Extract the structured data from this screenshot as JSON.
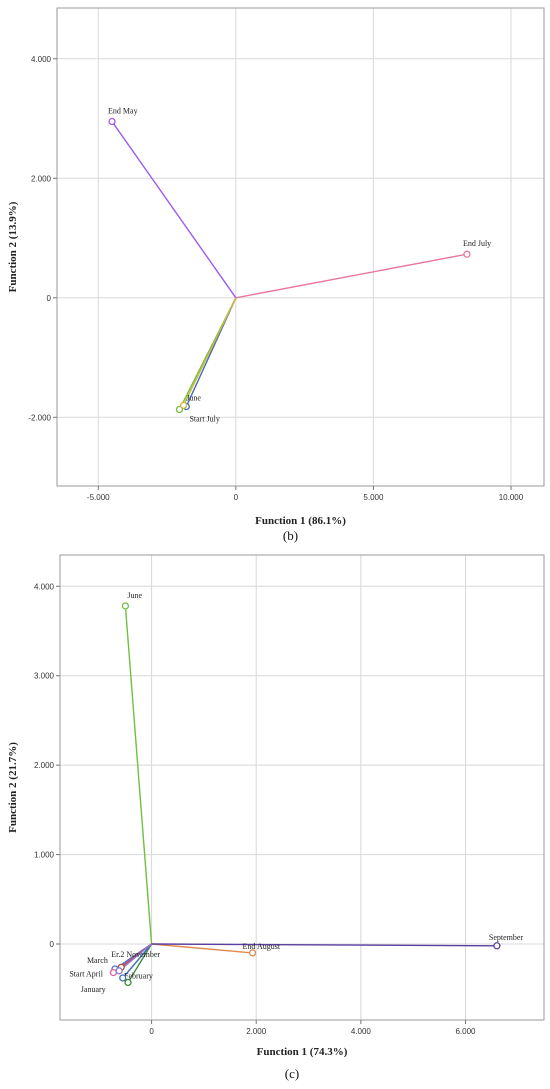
{
  "chart_data": [
    {
      "type": "scatter",
      "caption": "(b)",
      "xlabel": "Function 1 (86.1%)",
      "ylabel": "Function 2 (13.9%)",
      "xlim": [
        -6.5,
        11.2
      ],
      "ylim": [
        -3.15,
        4.85
      ],
      "xticks": [
        -5,
        0,
        5,
        10
      ],
      "xtick_labels": [
        "-5.000",
        "0",
        "5.000",
        "10.000"
      ],
      "yticks": [
        -2,
        0,
        2,
        4
      ],
      "ytick_labels": [
        "-2.000",
        "0",
        "2.000",
        "4.000"
      ],
      "grid": true,
      "points": [
        {
          "label": "End May",
          "x": -4.5,
          "y": 2.95,
          "color": "#9b5cf0"
        },
        {
          "label": "End July",
          "x": 8.4,
          "y": 0.73,
          "color": "#e9779f"
        },
        {
          "label": "June",
          "x": -1.8,
          "y": -1.82,
          "color": "#3d6fb6"
        },
        {
          "label": "Start July",
          "x": -2.05,
          "y": -1.87,
          "color": "#6fc040"
        },
        {
          "label": "",
          "x": -1.9,
          "y": -1.8,
          "color": "#d8b43c"
        }
      ]
    },
    {
      "type": "scatter",
      "caption": "(c)",
      "xlabel": "Function 1 (74.3%)",
      "ylabel": "Function 2 (21.7%)",
      "xlim": [
        -1.75,
        7.5
      ],
      "ylim": [
        -0.85,
        4.35
      ],
      "xticks": [
        0,
        2,
        4,
        6
      ],
      "xtick_labels": [
        "0",
        "2.000",
        "4.000",
        "6.000"
      ],
      "yticks": [
        0,
        1,
        2,
        3,
        4
      ],
      "ytick_labels": [
        "0",
        "1.000",
        "2.000",
        "3.000",
        "4.000"
      ],
      "grid": true,
      "points": [
        {
          "label": "June",
          "x": -0.5,
          "y": 3.78,
          "color": "#6fc040"
        },
        {
          "label": "End August",
          "x": 1.93,
          "y": -0.1,
          "color": "#e08a4f"
        },
        {
          "label": "September",
          "x": 6.6,
          "y": -0.02,
          "color": "#5b3fa0"
        },
        {
          "label": "February",
          "x": -0.45,
          "y": -0.43,
          "color": "#3a8a3a"
        },
        {
          "label": "March",
          "x": -0.7,
          "y": -0.28,
          "color": "#4a6fd0"
        },
        {
          "label": "Start April",
          "x": -0.73,
          "y": -0.32,
          "color": "#e0609a"
        },
        {
          "label": "January",
          "x": -0.55,
          "y": -0.38,
          "color": "#3d6fb6"
        },
        {
          "label": "Er.2 November",
          "x": -0.58,
          "y": -0.26,
          "color": "#c04848"
        },
        {
          "label": "",
          "x": -0.62,
          "y": -0.3,
          "color": "#8a7bd8"
        }
      ]
    }
  ]
}
